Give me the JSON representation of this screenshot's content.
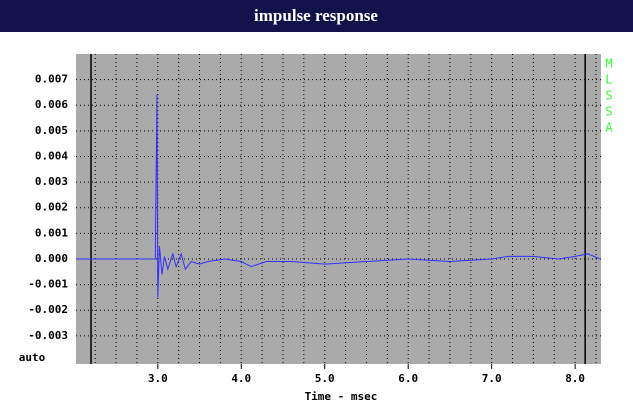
{
  "chart_data": {
    "type": "line",
    "title": "impulse response",
    "x_label": "Time - msec",
    "y_note": "auto",
    "side_label": [
      "M",
      "L",
      "S",
      "S",
      "A"
    ],
    "xlim": [
      2.02,
      8.31
    ],
    "ylim": [
      -0.0041,
      0.008
    ],
    "xticks": [
      {
        "value": 3,
        "label": "3.0"
      },
      {
        "value": 4,
        "label": "4.0"
      },
      {
        "value": 5,
        "label": "5.0"
      },
      {
        "value": 6,
        "label": "6.0"
      },
      {
        "value": 7,
        "label": "7.0"
      },
      {
        "value": 8,
        "label": "8.0"
      }
    ],
    "yticks": [
      0.007,
      0.006,
      0.005,
      0.004,
      0.003,
      0.002,
      0.001,
      {
        "value": 0,
        "label": "0.000"
      },
      -0.001,
      -0.002,
      -0.003
    ],
    "xgrid": [
      2.25,
      2.5,
      2.75,
      3,
      3.25,
      3.5,
      3.75,
      4,
      4.25,
      4.5,
      4.75,
      5,
      5.25,
      5.5,
      5.75,
      6,
      6.25,
      6.5,
      6.75,
      7,
      7.25,
      7.5,
      7.75,
      8,
      8.25
    ],
    "cursors": [
      2.2,
      8.12
    ],
    "grid": true,
    "series": [
      {
        "color": "#3030ff",
        "x": [
          2.02,
          2.97,
          2.99,
          3.0,
          3.02,
          3.05,
          3.08,
          3.12,
          3.18,
          3.22,
          3.28,
          3.33,
          3.4,
          3.5,
          3.6,
          3.8,
          4.0,
          4.12,
          4.3,
          4.6,
          5.0,
          5.5,
          6.0,
          6.5,
          7.0,
          7.2,
          7.5,
          7.8,
          8.0,
          8.15,
          8.3
        ],
        "values": [
          0,
          0,
          0.0064,
          -0.0015,
          0.0005,
          -0.0006,
          0.0001,
          -0.0004,
          0.0002,
          -0.0003,
          0.0002,
          -0.0004,
          -0.0001,
          -0.0002,
          -0.0001,
          0,
          -0.0001,
          -0.0003,
          -0.0001,
          -0.0001,
          -0.0002,
          -0.0001,
          0,
          -0.0001,
          0,
          0.0001,
          0.0001,
          0,
          0.0001,
          0.0002,
          0
        ]
      }
    ]
  }
}
